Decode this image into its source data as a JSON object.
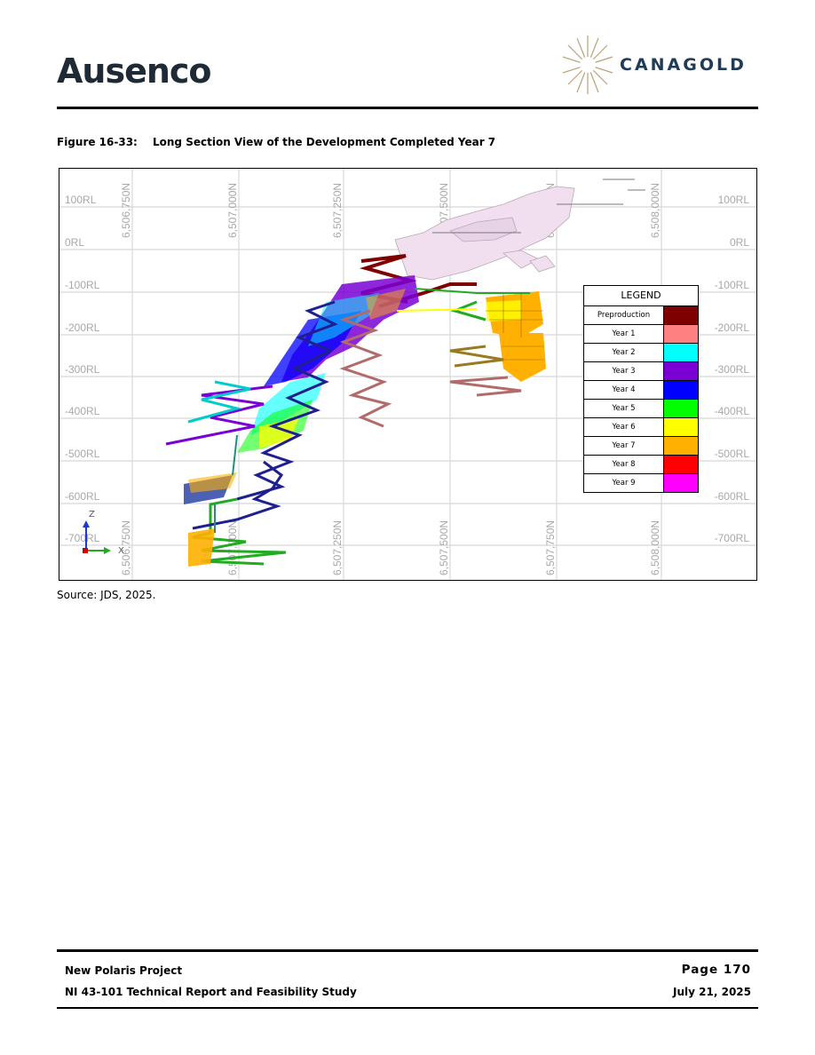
{
  "header": {
    "left_logo_text": "Ausenco",
    "right_logo_text": "CANAGOLD"
  },
  "figure": {
    "number": "Figure 16-33:",
    "title": "Long Section View of the Development Completed Year 7",
    "source": "Source: JDS, 2025."
  },
  "section": {
    "northing_labels": [
      "6,506,750N",
      "6,507,000N",
      "6,507,250N",
      "6,507,500N",
      "6,507,750N",
      "6,508,000N"
    ],
    "rl_left_labels": [
      "100RL",
      "0RL",
      "-100RL",
      "-200RL",
      "-300RL",
      "-400RL",
      "-500RL",
      "-600RL",
      "-700RL"
    ],
    "rl_right_labels": [
      "100RL",
      "0RL",
      "-100RL",
      "-200RL",
      "-300RL",
      "-400RL",
      "-500RL",
      "-600RL",
      "-700RL"
    ],
    "axis_z_label": "Z",
    "axis_x_label": "X"
  },
  "legend": {
    "title": "LEGEND",
    "items": [
      {
        "label": "Preproduction",
        "color": "#7f0000"
      },
      {
        "label": "Year 1",
        "color": "#ff8080"
      },
      {
        "label": "Year 2",
        "color": "#00ffff"
      },
      {
        "label": "Year 3",
        "color": "#7a00d6"
      },
      {
        "label": "Year 4",
        "color": "#0000ff"
      },
      {
        "label": "Year 5",
        "color": "#00ff00"
      },
      {
        "label": "Year 6",
        "color": "#ffff00"
      },
      {
        "label": "Year 7",
        "color": "#ffb000"
      },
      {
        "label": "Year 8",
        "color": "#ff0000"
      },
      {
        "label": "Year 9",
        "color": "#ff00ff"
      }
    ]
  },
  "footer": {
    "project": "New Polaris Project",
    "report": "NI 43-101 Technical Report and Feasibility Study",
    "page": "Page 170",
    "date": "July 21, 2025"
  }
}
